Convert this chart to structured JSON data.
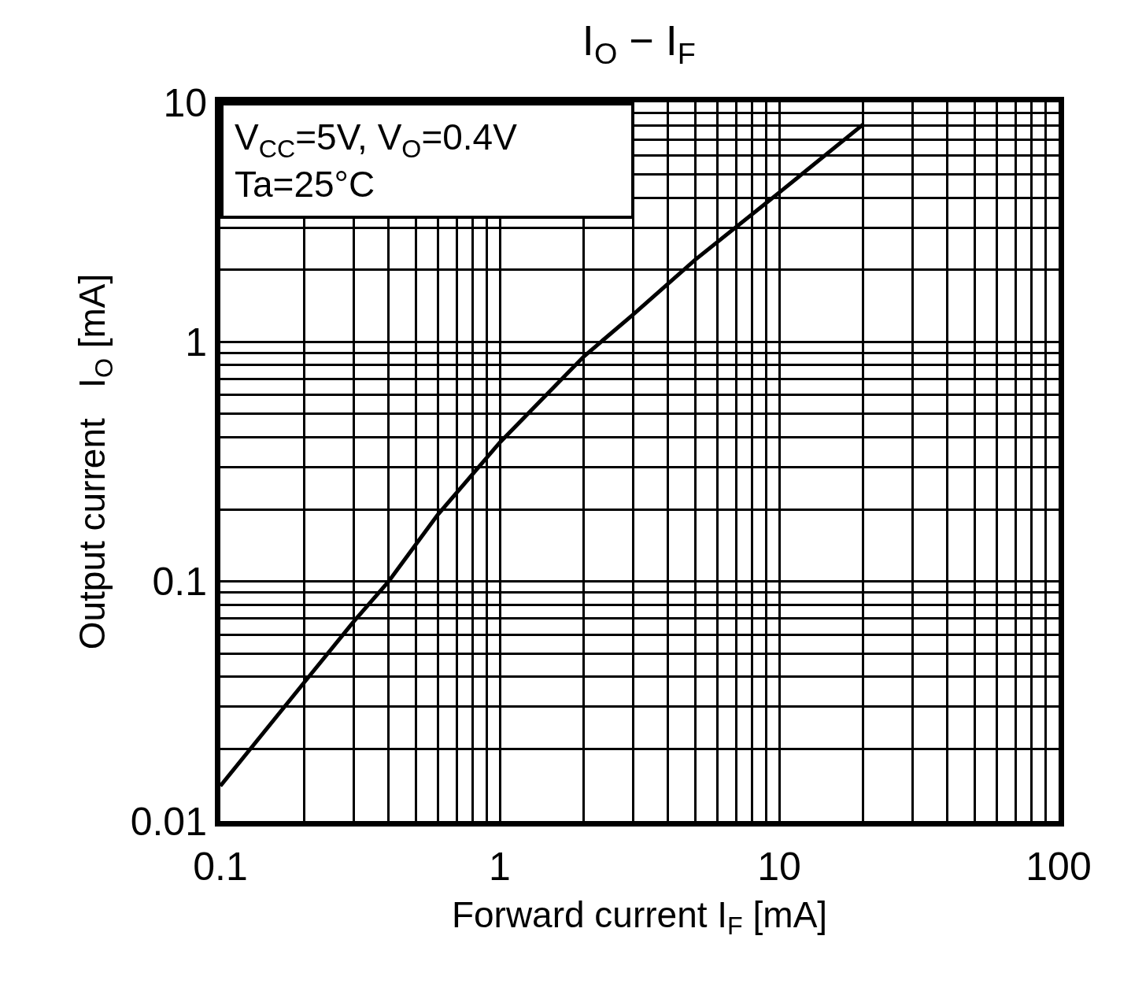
{
  "chart_data": {
    "type": "line",
    "title": "I$_{O}$ − I$_{F}$",
    "xlabel": "Forward current I$_{F}$ [mA]",
    "ylabel": "Output current   I$_{O}$ [mA]",
    "annotations": [
      "V$_{CC}$=5V, V$_{O}$=0.4V",
      "Ta=25°C"
    ],
    "log": "xy",
    "grid": true,
    "marker": "none",
    "line_style": "solid",
    "xlim": [
      0.1,
      100
    ],
    "ylim": [
      0.01,
      10
    ],
    "xticks": [
      0.1,
      {
        "value": 0.2,
        "label": null
      },
      {
        "value": 0.3,
        "label": null
      },
      {
        "value": 0.4,
        "label": null
      },
      {
        "value": 0.5,
        "label": null
      },
      {
        "value": 0.6,
        "label": null
      },
      {
        "value": 0.7,
        "label": null
      },
      {
        "value": 0.8,
        "label": null
      },
      {
        "value": 0.9,
        "label": null
      },
      1,
      {
        "value": 2,
        "label": null
      },
      {
        "value": 3,
        "label": null
      },
      {
        "value": 4,
        "label": null
      },
      {
        "value": 5,
        "label": null
      },
      {
        "value": 6,
        "label": null
      },
      {
        "value": 7,
        "label": null
      },
      {
        "value": 8,
        "label": null
      },
      {
        "value": 9,
        "label": null
      },
      10,
      {
        "value": 20,
        "label": null
      },
      {
        "value": 30,
        "label": null
      },
      {
        "value": 40,
        "label": null
      },
      {
        "value": 50,
        "label": null
      },
      {
        "value": 60,
        "label": null
      },
      {
        "value": 70,
        "label": null
      },
      {
        "value": 80,
        "label": null
      },
      {
        "value": 90,
        "label": null
      },
      100
    ],
    "yticks": [
      0.01,
      {
        "value": 0.02,
        "label": null
      },
      {
        "value": 0.03,
        "label": null
      },
      {
        "value": 0.04,
        "label": null
      },
      {
        "value": 0.05,
        "label": null
      },
      {
        "value": 0.06,
        "label": null
      },
      {
        "value": 0.07,
        "label": null
      },
      {
        "value": 0.08,
        "label": null
      },
      {
        "value": 0.09,
        "label": null
      },
      0.1,
      {
        "value": 0.2,
        "label": null
      },
      {
        "value": 0.3,
        "label": null
      },
      {
        "value": 0.4,
        "label": null
      },
      {
        "value": 0.5,
        "label": null
      },
      {
        "value": 0.6,
        "label": null
      },
      {
        "value": 0.7,
        "label": null
      },
      {
        "value": 0.8,
        "label": null
      },
      {
        "value": 0.9,
        "label": null
      },
      1,
      {
        "value": 2,
        "label": null
      },
      {
        "value": 3,
        "label": null
      },
      {
        "value": 4,
        "label": null
      },
      {
        "value": 5,
        "label": null
      },
      {
        "value": 6,
        "label": null
      },
      {
        "value": 7,
        "label": null
      },
      {
        "value": 8,
        "label": null
      },
      {
        "value": 9,
        "label": null
      },
      10
    ],
    "x": [
      0.1,
      0.2,
      0.3,
      0.4,
      0.6,
      1,
      2,
      3,
      5,
      10,
      20
    ],
    "series": [
      {
        "color": "#000000",
        "values": [
          0.014,
          0.038,
          0.068,
          0.1,
          0.19,
          0.38,
          0.87,
          1.3,
          2.2,
          4.2,
          8.1
        ]
      }
    ]
  }
}
